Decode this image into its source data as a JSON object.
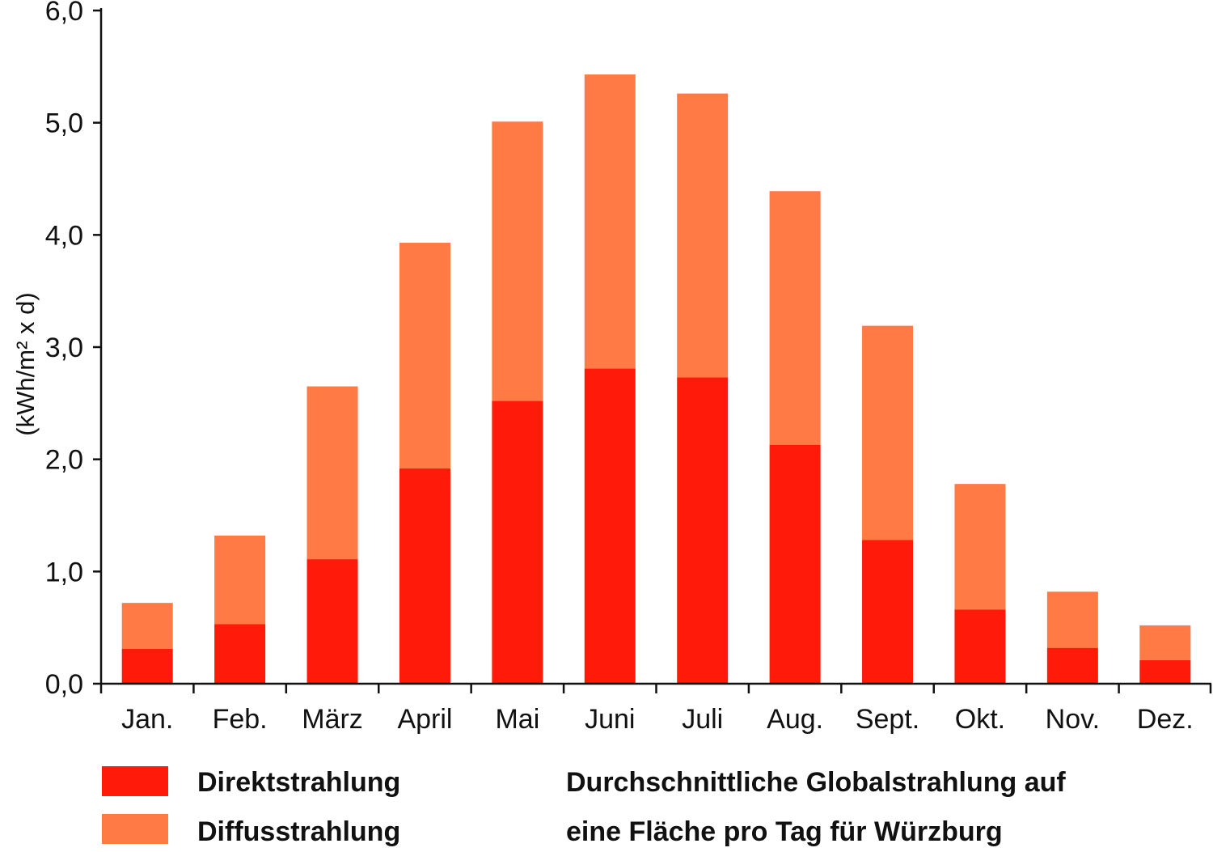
{
  "chart_data": {
    "type": "bar",
    "stacked": true,
    "categories": [
      "Jan.",
      "Feb.",
      "März",
      "April",
      "Mai",
      "Juni",
      "Juli",
      "Aug.",
      "Sept.",
      "Okt.",
      "Nov.",
      "Dez."
    ],
    "series": [
      {
        "name": "Direktstrahlung",
        "color": "#ff1a0a",
        "values": [
          0.31,
          0.53,
          1.11,
          1.92,
          2.52,
          2.81,
          2.73,
          2.13,
          1.28,
          0.66,
          0.32,
          0.21
        ]
      },
      {
        "name": "Diffusstrahlung",
        "color": "#ff7a45",
        "values": [
          0.41,
          0.79,
          1.54,
          2.01,
          2.49,
          2.62,
          2.53,
          2.26,
          1.91,
          1.12,
          0.5,
          0.31
        ]
      }
    ],
    "ylabel": "(kWh/m² x d)",
    "ylim": [
      0,
      6
    ],
    "yticks": [
      "0,0",
      "1,0",
      "2,0",
      "3,0",
      "4,0",
      "5,0",
      "6,0"
    ],
    "grid": false,
    "legend_position": "bottom-left",
    "caption_lines": [
      "Durchschnittliche Globalstrahlung auf",
      "eine Fläche pro Tag für Würzburg"
    ]
  }
}
